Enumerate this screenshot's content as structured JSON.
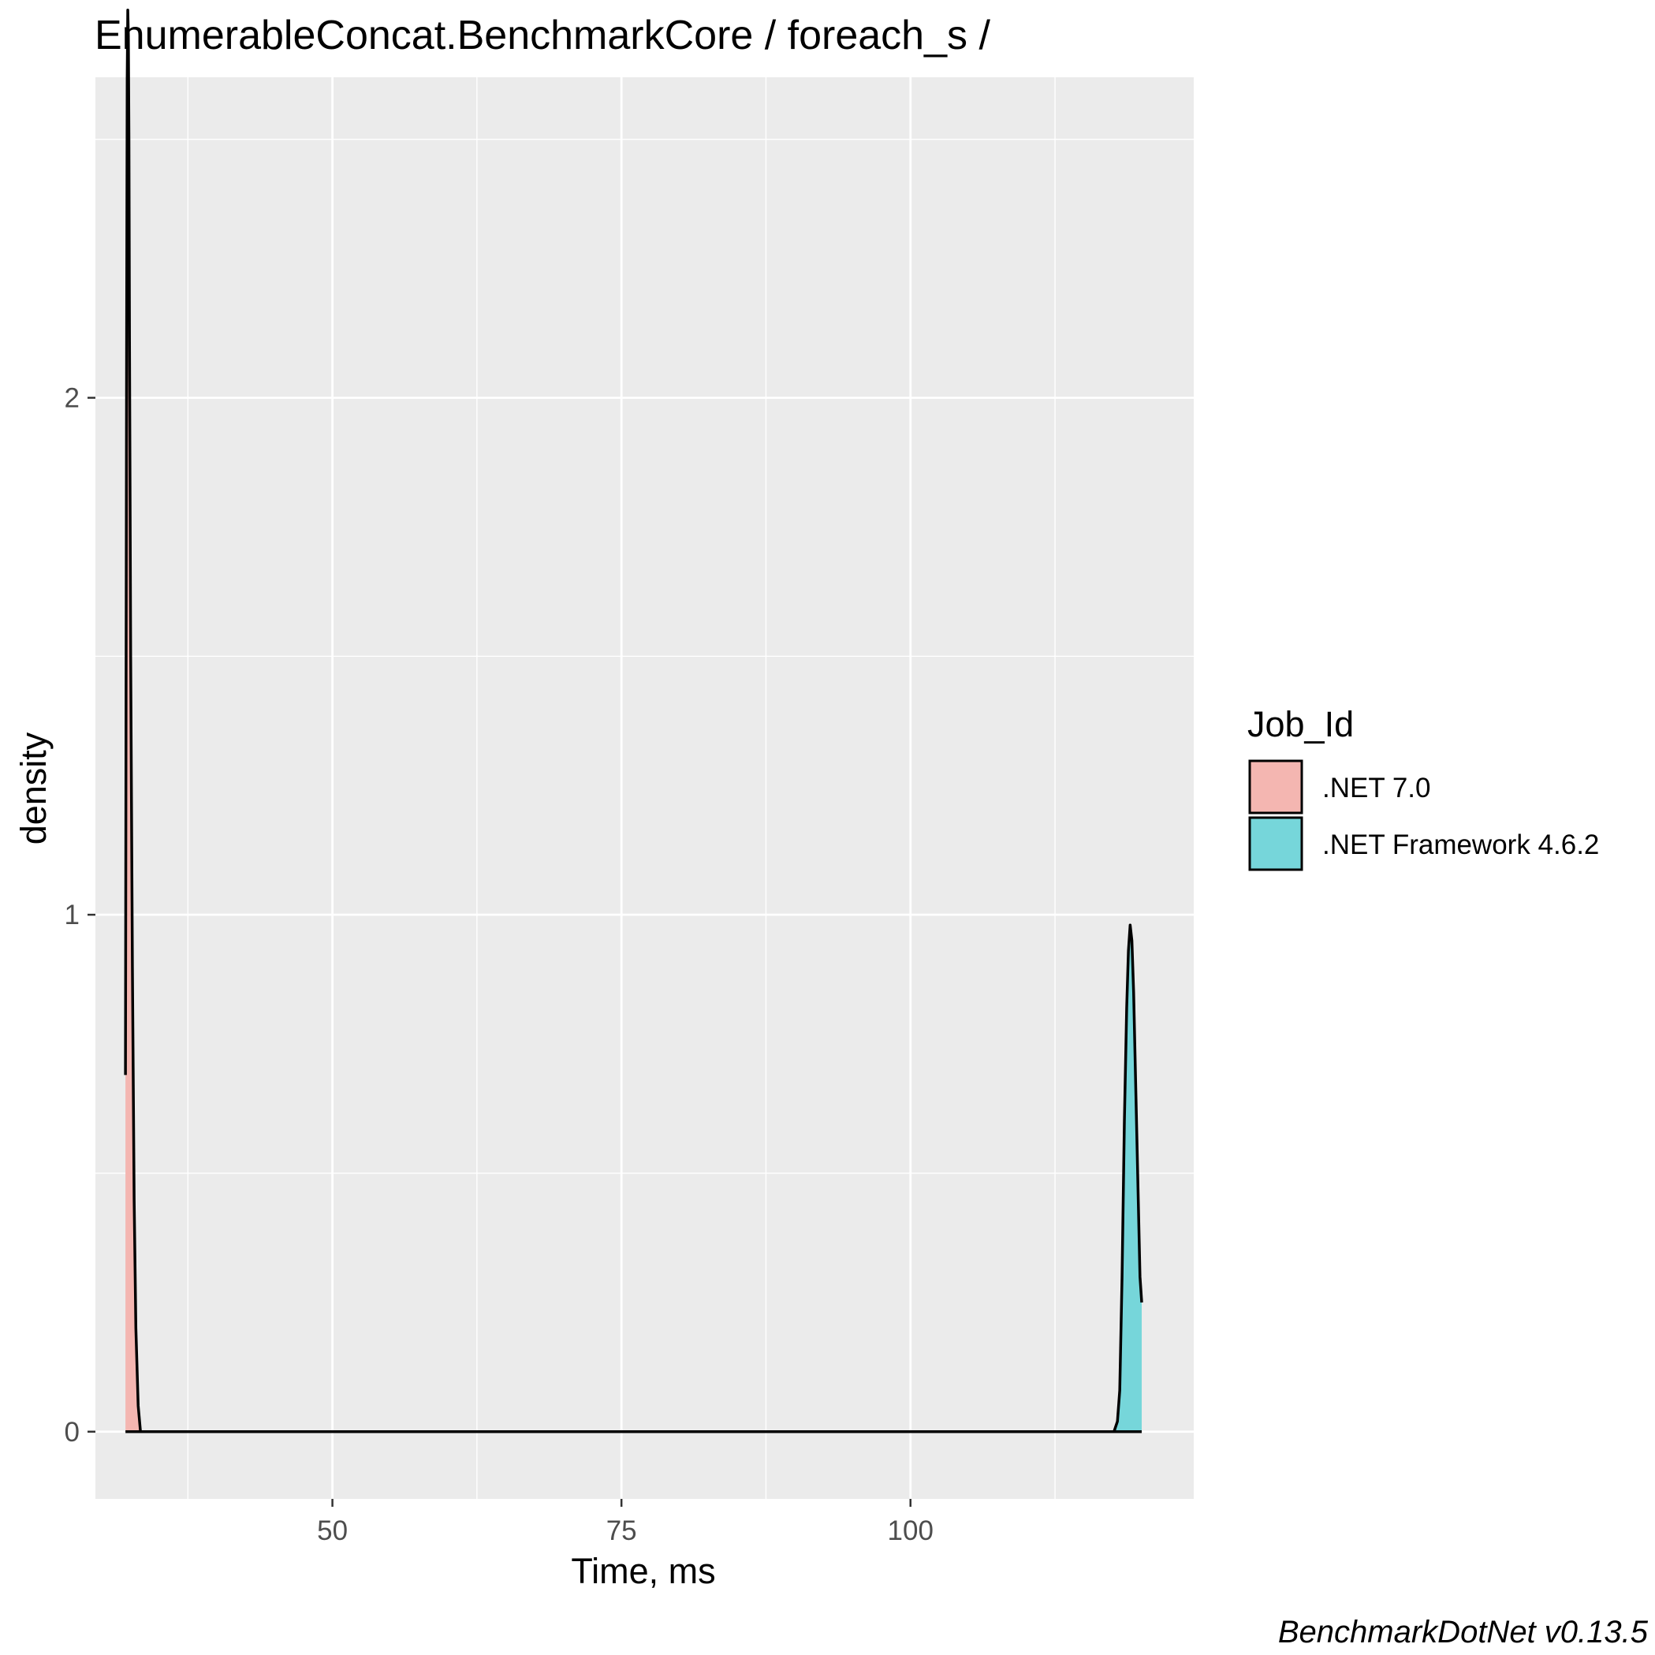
{
  "chart_data": {
    "type": "area",
    "title": "EnumerableConcat.BenchmarkCore / foreach_s /",
    "xlabel": "Time, ms",
    "ylabel": "density",
    "xlim": [
      29.5,
      124.5
    ],
    "ylim": [
      -0.13,
      2.62
    ],
    "x_ticks": [
      {
        "value": 50,
        "label": "50"
      },
      {
        "value": 75,
        "label": "75"
      },
      {
        "value": 100,
        "label": "100"
      }
    ],
    "y_ticks": [
      {
        "value": 0,
        "label": "0"
      },
      {
        "value": 1,
        "label": "1"
      },
      {
        "value": 2,
        "label": "2"
      }
    ],
    "grid": true,
    "background": "#ebebeb",
    "legend": {
      "title": "Job_Id",
      "position": "right"
    },
    "series": [
      {
        "name": ".NET 7.0",
        "color": "#f8766d",
        "fill": "#f4b6b1",
        "x": [
          32.1,
          32.15,
          32.2,
          32.25,
          32.3,
          32.35,
          32.4,
          32.45,
          32.55,
          32.7,
          32.85,
          33.0,
          33.2,
          33.4
        ],
        "y": [
          0.69,
          1.4,
          2.1,
          2.62,
          2.75,
          2.7,
          2.5,
          2.1,
          1.5,
          0.9,
          0.45,
          0.2,
          0.05,
          0.0
        ]
      },
      {
        "name": ".NET Framework 4.6.2",
        "color": "#00bfc4",
        "fill": "#76d6da",
        "x": [
          117.6,
          117.9,
          118.1,
          118.3,
          118.5,
          118.7,
          118.85,
          119.0,
          119.15,
          119.3,
          119.5,
          119.7,
          119.85,
          120.0
        ],
        "y": [
          0.0,
          0.02,
          0.08,
          0.3,
          0.6,
          0.82,
          0.93,
          0.98,
          0.95,
          0.85,
          0.65,
          0.45,
          0.3,
          0.25
        ]
      }
    ]
  },
  "caption": "BenchmarkDotNet v0.13.5"
}
